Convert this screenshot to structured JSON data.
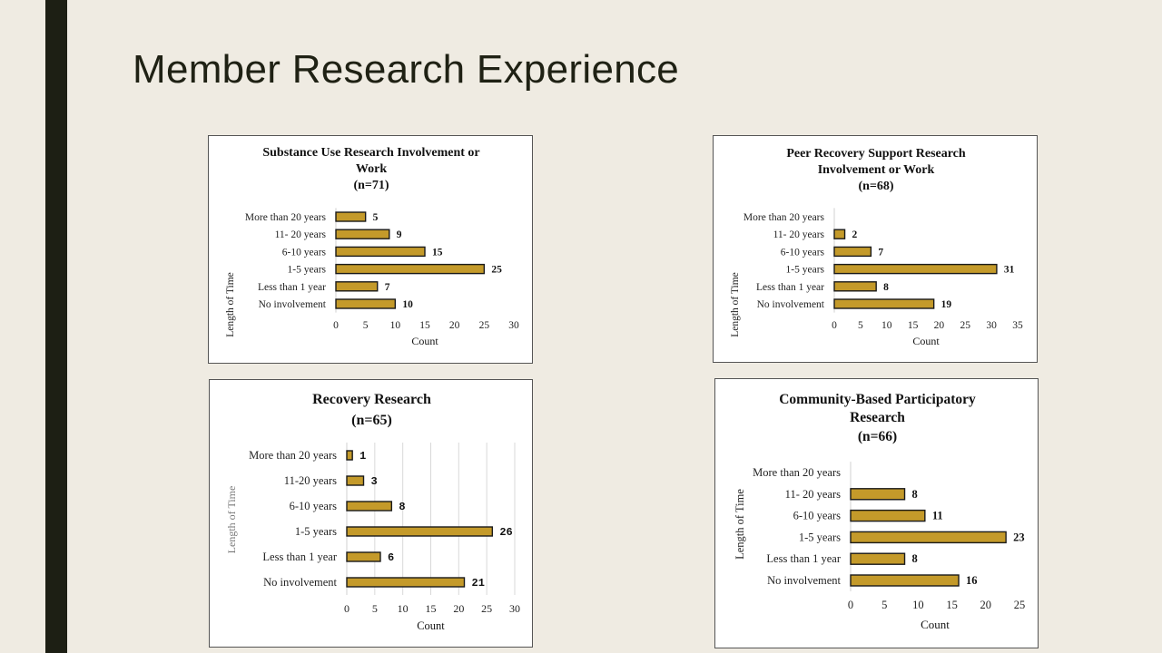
{
  "slide": {
    "title": "Member Research Experience"
  },
  "chart_data": [
    {
      "type": "bar",
      "orientation": "horizontal",
      "title_lines": [
        "Substance Use Research Involvement or",
        "Work",
        "(n=71)"
      ],
      "xlabel": "Count",
      "ylabel": "Length of Time",
      "categories": [
        "More than 20 years",
        "11- 20 years",
        "6-10 years",
        "1-5 years",
        "Less than 1 year",
        "No involvement"
      ],
      "values": [
        5,
        9,
        15,
        25,
        7,
        10
      ],
      "xlim": [
        0,
        30
      ],
      "xticks": [
        0,
        5,
        10,
        15,
        20,
        25,
        30
      ],
      "grid": false,
      "bar_color": "#c49a2a"
    },
    {
      "type": "bar",
      "orientation": "horizontal",
      "title_lines": [
        "Peer Recovery Support  Research",
        "Involvement or Work",
        "(n=68)"
      ],
      "xlabel": "Count",
      "ylabel": "Length of Time",
      "categories": [
        "More than 20 years",
        "11- 20 years",
        "6-10 years",
        "1-5 years",
        "Less than 1 year",
        "No involvement"
      ],
      "values": [
        null,
        2,
        7,
        31,
        8,
        19
      ],
      "xlim": [
        0,
        35
      ],
      "xticks": [
        0,
        5,
        10,
        15,
        20,
        25,
        30,
        35
      ],
      "grid": false,
      "bar_color": "#c49a2a"
    },
    {
      "type": "bar",
      "orientation": "horizontal",
      "title_lines": [
        "Recovery Research",
        "(n=65)"
      ],
      "xlabel": "Count",
      "ylabel": "Length of Time",
      "categories": [
        "More than 20 years",
        "11-20 years",
        "6-10 years",
        "1-5 years",
        "Less than 1 year",
        "No involvement"
      ],
      "values": [
        1,
        3,
        8,
        26,
        6,
        21
      ],
      "xlim": [
        0,
        30
      ],
      "xticks": [
        0,
        5,
        10,
        15,
        20,
        25,
        30
      ],
      "grid": true,
      "bar_color": "#c49a2a"
    },
    {
      "type": "bar",
      "orientation": "horizontal",
      "title_lines": [
        "Community-Based  Participatory",
        "Research",
        "(n=66)"
      ],
      "xlabel": "Count",
      "ylabel": "Length of Time",
      "categories": [
        "More than 20 years",
        "11- 20 years",
        "6-10 years",
        "1-5 years",
        "Less than 1 year",
        "No involvement"
      ],
      "values": [
        null,
        8,
        11,
        23,
        8,
        16
      ],
      "xlim": [
        0,
        25
      ],
      "xticks": [
        0,
        5,
        10,
        15,
        20,
        25
      ],
      "grid": false,
      "bar_color": "#c49a2a"
    }
  ]
}
